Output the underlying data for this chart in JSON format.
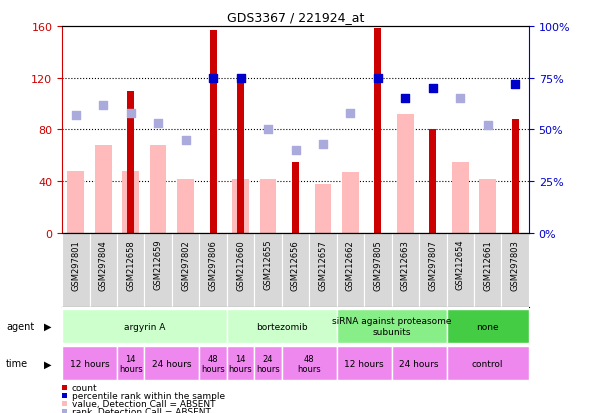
{
  "title": "GDS3367 / 221924_at",
  "samples": [
    "GSM297801",
    "GSM297804",
    "GSM212658",
    "GSM212659",
    "GSM297802",
    "GSM297806",
    "GSM212660",
    "GSM212655",
    "GSM212656",
    "GSM212657",
    "GSM212662",
    "GSM297805",
    "GSM212663",
    "GSM297807",
    "GSM212654",
    "GSM212661",
    "GSM297803"
  ],
  "count_values": [
    0,
    0,
    110,
    0,
    0,
    157,
    122,
    0,
    55,
    0,
    0,
    158,
    0,
    80,
    0,
    0,
    88
  ],
  "value_values": [
    48,
    68,
    48,
    68,
    42,
    0,
    42,
    42,
    0,
    38,
    47,
    0,
    92,
    0,
    55,
    42,
    0
  ],
  "value_absent": [
    true,
    true,
    true,
    true,
    true,
    false,
    true,
    true,
    false,
    true,
    true,
    false,
    true,
    false,
    true,
    true,
    false
  ],
  "rank_values": [
    57,
    62,
    58,
    53,
    45,
    75,
    75,
    50,
    40,
    43,
    58,
    75,
    65,
    70,
    65,
    52,
    72
  ],
  "rank_absent": [
    true,
    true,
    true,
    true,
    true,
    false,
    false,
    true,
    true,
    true,
    true,
    false,
    false,
    false,
    true,
    true,
    false
  ],
  "ylim_left": [
    0,
    160
  ],
  "ylim_right": [
    0,
    100
  ],
  "yticks_left": [
    0,
    40,
    80,
    120,
    160
  ],
  "yticks_right": [
    0,
    25,
    50,
    75,
    100
  ],
  "ytick_labels_right": [
    "0%",
    "25%",
    "50%",
    "75%",
    "100%"
  ],
  "color_count": "#cc0000",
  "color_rank_present": "#0000cc",
  "color_rank_absent": "#aaaadd",
  "color_value_absent": "#ffbbbb",
  "agent_groups": [
    {
      "label": "argyrin A",
      "start": 0,
      "end": 6,
      "color": "#ccffcc"
    },
    {
      "label": "bortezomib",
      "start": 6,
      "end": 10,
      "color": "#ccffcc"
    },
    {
      "label": "siRNA against proteasome\nsubunits",
      "start": 10,
      "end": 14,
      "color": "#88ee88"
    },
    {
      "label": "none",
      "start": 14,
      "end": 17,
      "color": "#44cc44"
    }
  ],
  "time_groups": [
    {
      "label": "12 hours",
      "start": 0,
      "end": 2,
      "size": "large"
    },
    {
      "label": "14\nhours",
      "start": 2,
      "end": 3,
      "size": "small"
    },
    {
      "label": "24 hours",
      "start": 3,
      "end": 5,
      "size": "large"
    },
    {
      "label": "48\nhours",
      "start": 5,
      "end": 6,
      "size": "small"
    },
    {
      "label": "14\nhours",
      "start": 6,
      "end": 7,
      "size": "small"
    },
    {
      "label": "24\nhours",
      "start": 7,
      "end": 8,
      "size": "small"
    },
    {
      "label": "48\nhours",
      "start": 8,
      "end": 10,
      "size": "small"
    },
    {
      "label": "12 hours",
      "start": 10,
      "end": 12,
      "size": "large"
    },
    {
      "label": "24 hours",
      "start": 12,
      "end": 14,
      "size": "large"
    },
    {
      "label": "control",
      "start": 14,
      "end": 17,
      "size": "large"
    }
  ],
  "time_color": "#ee88ee",
  "legend_items": [
    {
      "color": "#cc0000",
      "label": "count"
    },
    {
      "color": "#0000cc",
      "label": "percentile rank within the sample"
    },
    {
      "color": "#ffbbbb",
      "label": "value, Detection Call = ABSENT"
    },
    {
      "color": "#aaaadd",
      "label": "rank, Detection Call = ABSENT"
    }
  ]
}
